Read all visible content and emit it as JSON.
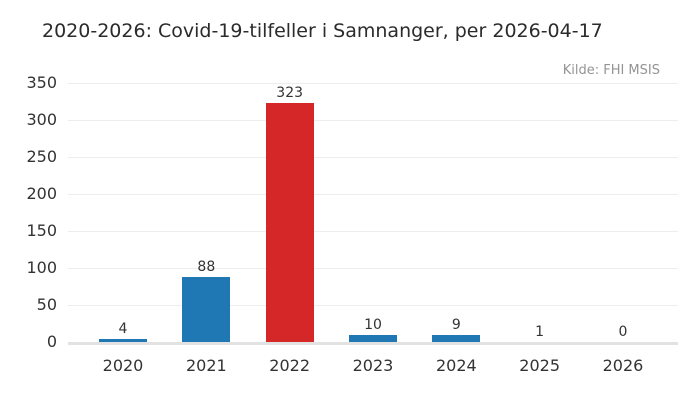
{
  "header": {
    "title": "2020-2026: Covid-19-tilfeller i Samnanger, per 2026-04-17",
    "source_note": "Kilde: FHI MSIS"
  },
  "chart_data": {
    "type": "bar",
    "title": "2020-2026: Covid-19-tilfeller i Samnanger, per 2026-04-17",
    "source_note": "Kilde: FHI MSIS",
    "categories": [
      "2020",
      "2021",
      "2022",
      "2023",
      "2024",
      "2025",
      "2026"
    ],
    "values": [
      4,
      88,
      323,
      10,
      9,
      1,
      0
    ],
    "value_labels": [
      "4",
      "88",
      "323",
      "10",
      "9",
      "1",
      "0"
    ],
    "bar_colors": [
      "#1f77b4",
      "#1f77b4",
      "#d62728",
      "#1f77b4",
      "#1f77b4",
      "#1f77b4",
      "#1f77b4"
    ],
    "highlighted_category": "2022",
    "yticks": [
      0,
      50,
      100,
      150,
      200,
      250,
      300,
      350
    ],
    "ylim": [
      0,
      350
    ],
    "xlabel": "",
    "ylabel": "",
    "grid": "horizontal-light",
    "legend": "none",
    "colors": {
      "bar_blue": "#1f77b4",
      "bar_red": "#d62728",
      "gridline": "#ededed",
      "axis_line": "#e2e2e2",
      "tick_text": "#333333",
      "title_text": "#2b2b2b",
      "source_text": "#949494",
      "background": "#ffffff"
    }
  }
}
